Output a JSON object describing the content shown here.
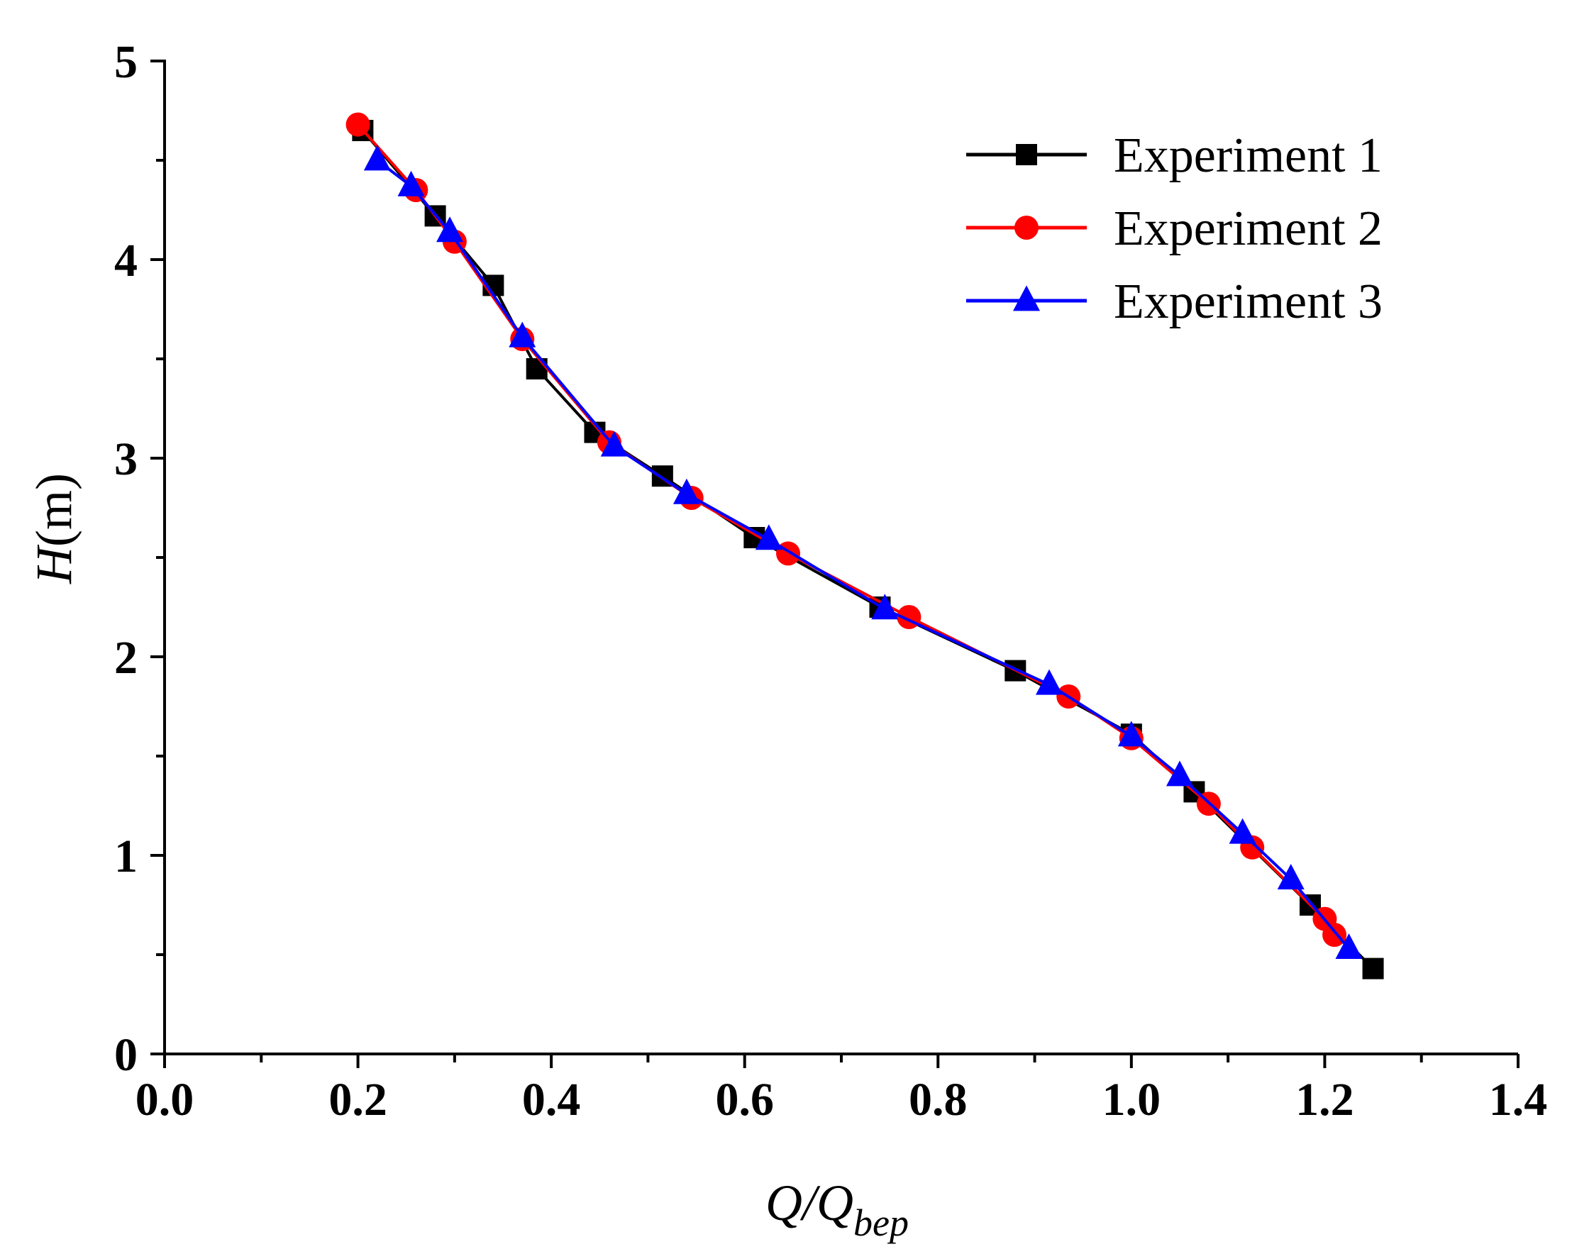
{
  "chart_data": {
    "type": "line",
    "title": "",
    "xlabel": {
      "main": "Q/Q",
      "subscript": "bep"
    },
    "ylabel": {
      "italic": "H",
      "unit": "(m)"
    },
    "xlim": [
      0.0,
      1.4
    ],
    "ylim": [
      0,
      5
    ],
    "x_ticks": [
      "0.0",
      "0.2",
      "0.4",
      "0.6",
      "0.8",
      "1.0",
      "1.2",
      "1.4"
    ],
    "x_tick_values": [
      0.0,
      0.2,
      0.4,
      0.6,
      0.8,
      1.0,
      1.2,
      1.4
    ],
    "x_minor_ticks": [
      0.1,
      0.3,
      0.5,
      0.7,
      0.9,
      1.1,
      1.3
    ],
    "y_ticks": [
      "0",
      "1",
      "2",
      "3",
      "4",
      "5"
    ],
    "y_tick_values": [
      0,
      1,
      2,
      3,
      4,
      5
    ],
    "y_minor_ticks": [
      0.5,
      1.5,
      2.5,
      3.5,
      4.5
    ],
    "grid": false,
    "legend_position": "top-right",
    "series": [
      {
        "name": "Experiment 1",
        "color": "#000000",
        "marker": "square",
        "x": [
          0.205,
          0.28,
          0.34,
          0.385,
          0.445,
          0.515,
          0.61,
          0.74,
          0.88,
          1.0,
          1.065,
          1.185,
          1.25
        ],
        "y": [
          4.65,
          4.22,
          3.87,
          3.45,
          3.13,
          2.91,
          2.6,
          2.25,
          1.93,
          1.61,
          1.32,
          0.75,
          0.43
        ]
      },
      {
        "name": "Experiment 2",
        "color": "#ff0000",
        "marker": "circle",
        "x": [
          0.2,
          0.26,
          0.3,
          0.37,
          0.46,
          0.545,
          0.645,
          0.77,
          0.935,
          1.0,
          1.08,
          1.125,
          1.2,
          1.21
        ],
        "y": [
          4.68,
          4.35,
          4.09,
          3.6,
          3.08,
          2.8,
          2.52,
          2.2,
          1.8,
          1.59,
          1.26,
          1.04,
          0.68,
          0.6
        ]
      },
      {
        "name": "Experiment 3",
        "color": "#0000ff",
        "marker": "triangle",
        "x": [
          0.22,
          0.255,
          0.295,
          0.37,
          0.465,
          0.54,
          0.625,
          0.745,
          0.915,
          1.0,
          1.05,
          1.115,
          1.165,
          1.225
        ],
        "y": [
          4.5,
          4.37,
          4.14,
          3.61,
          3.06,
          2.82,
          2.59,
          2.24,
          1.86,
          1.6,
          1.4,
          1.11,
          0.88,
          0.53
        ]
      }
    ]
  }
}
